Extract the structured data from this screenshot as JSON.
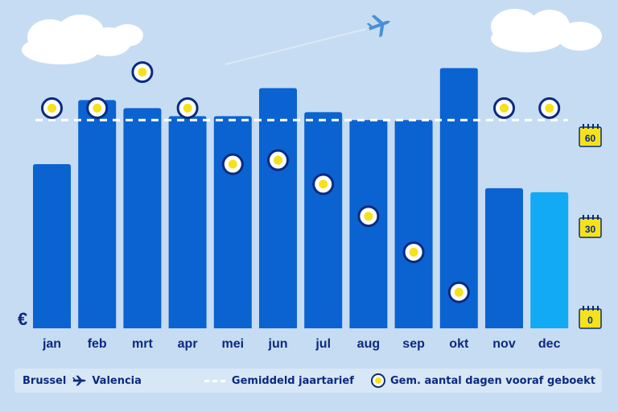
{
  "currency_symbol": "€",
  "colors": {
    "bar": "#0a63d1",
    "bar_highlight": "#12aaf5",
    "avg_line": "#ffffff",
    "text": "#0b2a80",
    "marker_ring": "#0b2a80",
    "marker_fill": "#f6e21a",
    "calendar": "#f6e21a",
    "background": "#c6dcf2"
  },
  "legend": {
    "origin": "Brussel",
    "destination": "Valencia",
    "avg_label": "Gemiddeld jaartarief",
    "days_label": "Gem. aantal dagen vooraf geboekt"
  },
  "chart_data": {
    "type": "bar",
    "categories": [
      "jan",
      "feb",
      "mrt",
      "apr",
      "mei",
      "jun",
      "jul",
      "aug",
      "sep",
      "okt",
      "nov",
      "dec"
    ],
    "series": [
      {
        "values": [
          41,
          57,
          55,
          53,
          53,
          60,
          54,
          52,
          52,
          65,
          35,
          34
        ]
      },
      {
        "values": [
          55,
          55,
          64,
          55,
          41,
          42,
          36,
          28,
          19,
          9,
          55,
          55
        ]
      }
    ],
    "average": 52,
    "highlight_index": 11,
    "right_axis_ticks": [
      0,
      30,
      60
    ],
    "ylim": [
      0,
      80
    ]
  }
}
